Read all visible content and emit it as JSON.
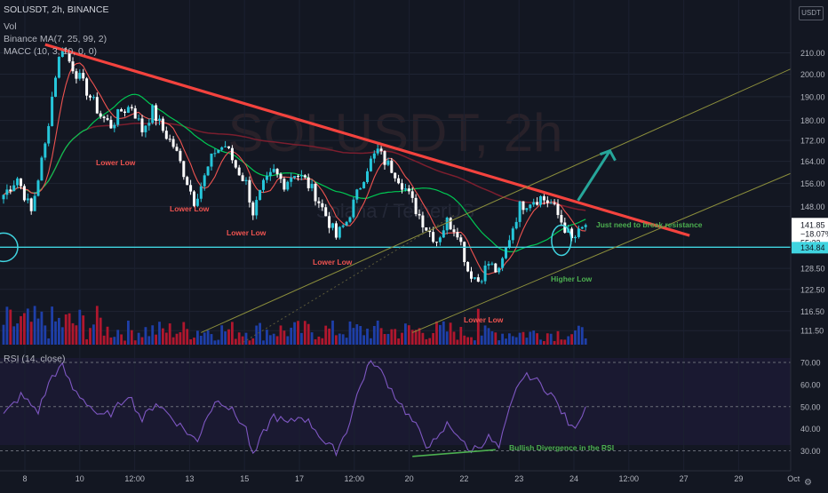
{
  "header": {
    "symbol_line": "SOLUSDT, 2h, BINANCE",
    "volume_label": "Vol",
    "ma1_label": "Binance MA(7, 25, 99, 2)",
    "ma2_label": "MACC (10, 3, 10, 0, 0)",
    "currency_button": "USDT"
  },
  "watermark": {
    "line1": "SOLUSDT, 2h",
    "line2": "Solana / TetherUS"
  },
  "chart_data": {
    "type": "candlestick",
    "symbol": "SOLUSDT",
    "interval": "2h",
    "exchange": "BINANCE",
    "price_axis": {
      "ticks": [
        210.0,
        200.0,
        190.0,
        180.0,
        172.0,
        164.0,
        156.0,
        148.0,
        141.85,
        134.84,
        128.5,
        122.5,
        116.5,
        111.5
      ],
      "ylim": [
        108,
        222
      ],
      "log_scale": true
    },
    "time_axis": {
      "ticks": [
        "8",
        "10",
        "12:00",
        "13",
        "15",
        "17",
        "12:00",
        "20",
        "22",
        "23",
        "24",
        "12:00",
        "27",
        "29",
        "Oct"
      ]
    },
    "last_price": {
      "value": "141.85",
      "change": "−18.07%",
      "countdown": "55:33"
    },
    "support_level": {
      "value": 134.84,
      "label": "134.84"
    },
    "ohlc_close_path": [
      {
        "i": 0,
        "close": 152
      },
      {
        "i": 4,
        "close": 158
      },
      {
        "i": 8,
        "close": 146
      },
      {
        "i": 12,
        "close": 170
      },
      {
        "i": 15,
        "close": 200
      },
      {
        "i": 17,
        "close": 214
      },
      {
        "i": 19,
        "close": 206
      },
      {
        "i": 22,
        "close": 198
      },
      {
        "i": 25,
        "close": 190
      },
      {
        "i": 28,
        "close": 182
      },
      {
        "i": 31,
        "close": 178
      },
      {
        "i": 34,
        "close": 184
      },
      {
        "i": 37,
        "close": 186
      },
      {
        "i": 40,
        "close": 176
      },
      {
        "i": 43,
        "close": 184
      },
      {
        "i": 46,
        "close": 176
      },
      {
        "i": 49,
        "close": 170
      },
      {
        "i": 52,
        "close": 160
      },
      {
        "i": 55,
        "close": 150
      },
      {
        "i": 58,
        "close": 158
      },
      {
        "i": 61,
        "close": 168
      },
      {
        "i": 64,
        "close": 170
      },
      {
        "i": 67,
        "close": 162
      },
      {
        "i": 70,
        "close": 156
      },
      {
        "i": 72,
        "close": 146
      },
      {
        "i": 75,
        "close": 155
      },
      {
        "i": 78,
        "close": 160
      },
      {
        "i": 81,
        "close": 156
      },
      {
        "i": 84,
        "close": 160
      },
      {
        "i": 87,
        "close": 157
      },
      {
        "i": 90,
        "close": 152
      },
      {
        "i": 93,
        "close": 145
      },
      {
        "i": 96,
        "close": 138
      },
      {
        "i": 99,
        "close": 143
      },
      {
        "i": 102,
        "close": 152
      },
      {
        "i": 105,
        "close": 162
      },
      {
        "i": 108,
        "close": 168
      },
      {
        "i": 110,
        "close": 164
      },
      {
        "i": 113,
        "close": 160
      },
      {
        "i": 116,
        "close": 154
      },
      {
        "i": 119,
        "close": 147
      },
      {
        "i": 122,
        "close": 141
      },
      {
        "i": 125,
        "close": 137
      },
      {
        "i": 128,
        "close": 143
      },
      {
        "i": 131,
        "close": 140
      },
      {
        "i": 134,
        "close": 128
      },
      {
        "i": 137,
        "close": 125
      },
      {
        "i": 140,
        "close": 130
      },
      {
        "i": 143,
        "close": 127
      },
      {
        "i": 146,
        "close": 138
      },
      {
        "i": 149,
        "close": 148
      },
      {
        "i": 152,
        "close": 150
      },
      {
        "i": 155,
        "close": 151
      },
      {
        "i": 158,
        "close": 149
      },
      {
        "i": 161,
        "close": 143
      },
      {
        "i": 164,
        "close": 137
      },
      {
        "i": 166,
        "close": 139
      },
      {
        "i": 168,
        "close": 141.85
      }
    ],
    "annotations": [
      {
        "text": "Lower Low",
        "color": "#ef5350"
      },
      {
        "text": "Lower Low",
        "color": "#ef5350"
      },
      {
        "text": "Lower Low",
        "color": "#ef5350"
      },
      {
        "text": "Lower Low",
        "color": "#ef5350"
      },
      {
        "text": "Lower Low",
        "color": "#ef5350"
      },
      {
        "text": "Higher Low",
        "color": "#4caf50"
      },
      {
        "text": "Just need to break resistance",
        "color": "#4caf50"
      },
      {
        "text": "Bullish Divergence in the RSI",
        "color": "#4caf50"
      }
    ],
    "rsi": {
      "label": "RSI (14, close)",
      "ticks": [
        70.0,
        60.0,
        50.0,
        40.0,
        30.0
      ],
      "ylim": [
        25,
        72
      ],
      "path": [
        {
          "i": 0,
          "v": 46
        },
        {
          "i": 5,
          "v": 55
        },
        {
          "i": 10,
          "v": 48
        },
        {
          "i": 14,
          "v": 64
        },
        {
          "i": 17,
          "v": 68
        },
        {
          "i": 20,
          "v": 58
        },
        {
          "i": 24,
          "v": 52
        },
        {
          "i": 28,
          "v": 45
        },
        {
          "i": 32,
          "v": 48
        },
        {
          "i": 36,
          "v": 56
        },
        {
          "i": 40,
          "v": 44
        },
        {
          "i": 44,
          "v": 52
        },
        {
          "i": 48,
          "v": 46
        },
        {
          "i": 52,
          "v": 40
        },
        {
          "i": 56,
          "v": 34
        },
        {
          "i": 58,
          "v": 44
        },
        {
          "i": 62,
          "v": 54
        },
        {
          "i": 66,
          "v": 48
        },
        {
          "i": 70,
          "v": 40
        },
        {
          "i": 72,
          "v": 27
        },
        {
          "i": 75,
          "v": 38
        },
        {
          "i": 78,
          "v": 46
        },
        {
          "i": 82,
          "v": 42
        },
        {
          "i": 86,
          "v": 46
        },
        {
          "i": 90,
          "v": 40
        },
        {
          "i": 93,
          "v": 33
        },
        {
          "i": 96,
          "v": 30
        },
        {
          "i": 99,
          "v": 39
        },
        {
          "i": 102,
          "v": 55
        },
        {
          "i": 105,
          "v": 68
        },
        {
          "i": 107,
          "v": 70
        },
        {
          "i": 110,
          "v": 63
        },
        {
          "i": 113,
          "v": 55
        },
        {
          "i": 116,
          "v": 48
        },
        {
          "i": 119,
          "v": 41
        },
        {
          "i": 122,
          "v": 33
        },
        {
          "i": 125,
          "v": 34
        },
        {
          "i": 128,
          "v": 42
        },
        {
          "i": 131,
          "v": 38
        },
        {
          "i": 134,
          "v": 30
        },
        {
          "i": 137,
          "v": 32
        },
        {
          "i": 140,
          "v": 36
        },
        {
          "i": 143,
          "v": 31
        },
        {
          "i": 146,
          "v": 48
        },
        {
          "i": 149,
          "v": 62
        },
        {
          "i": 152,
          "v": 64
        },
        {
          "i": 155,
          "v": 60
        },
        {
          "i": 158,
          "v": 56
        },
        {
          "i": 161,
          "v": 48
        },
        {
          "i": 164,
          "v": 40
        },
        {
          "i": 166,
          "v": 44
        },
        {
          "i": 168,
          "v": 50
        }
      ]
    },
    "colors": {
      "up": "#26c6da",
      "down": "#ffffff",
      "vol_up": "#1e3fa8",
      "vol_down": "#b0172e",
      "ma_fast": "#ef5350",
      "ma_mid": "#00c853",
      "ma_slow": "#7b1e2e",
      "trendline": "#f4433e",
      "channel": "#8c8f3c",
      "support": "#40d4e0",
      "arrow": "#26a69a",
      "rsi_line": "#7e57c2",
      "divergence": "#4caf50"
    }
  }
}
